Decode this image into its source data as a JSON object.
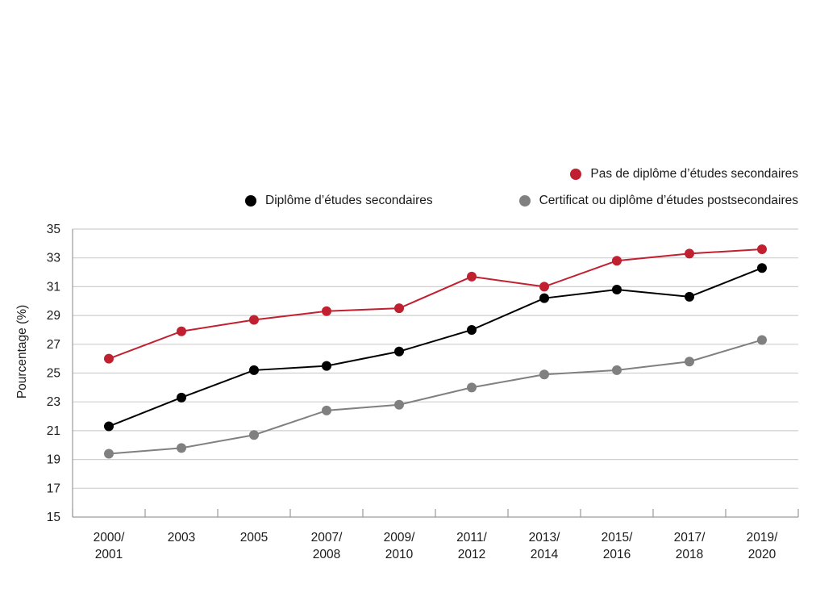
{
  "chart_data": {
    "type": "line",
    "categories": [
      "2000/\n2001",
      "2003",
      "2005",
      "2007/\n2008",
      "2009/\n2010",
      "2011/\n2012",
      "2013/\n2014",
      "2015/\n2016",
      "2017/\n2018",
      "2019/\n2020"
    ],
    "series": [
      {
        "name": "Pas de diplôme d’études secondaires",
        "color": "#c0202f",
        "values": [
          26.0,
          27.9,
          28.7,
          29.3,
          29.5,
          31.7,
          31.0,
          32.8,
          33.3,
          33.6
        ]
      },
      {
        "name": "Diplôme d’études secondaires",
        "color": "#000000",
        "values": [
          21.3,
          23.3,
          25.2,
          25.5,
          26.5,
          28.0,
          30.2,
          30.8,
          30.3,
          32.3
        ]
      },
      {
        "name": "Certificat ou diplôme d’études postsecondaires",
        "color": "#808080",
        "values": [
          19.4,
          19.8,
          20.7,
          22.4,
          22.8,
          24.0,
          24.9,
          25.2,
          25.8,
          27.3
        ]
      }
    ],
    "ylabel": "Pourcentage (%)",
    "xlabel": "",
    "ylim": [
      15,
      35
    ],
    "yticks": [
      15,
      17,
      19,
      21,
      23,
      25,
      27,
      29,
      31,
      33,
      35
    ],
    "grid": true,
    "legend_position": "top-right"
  }
}
